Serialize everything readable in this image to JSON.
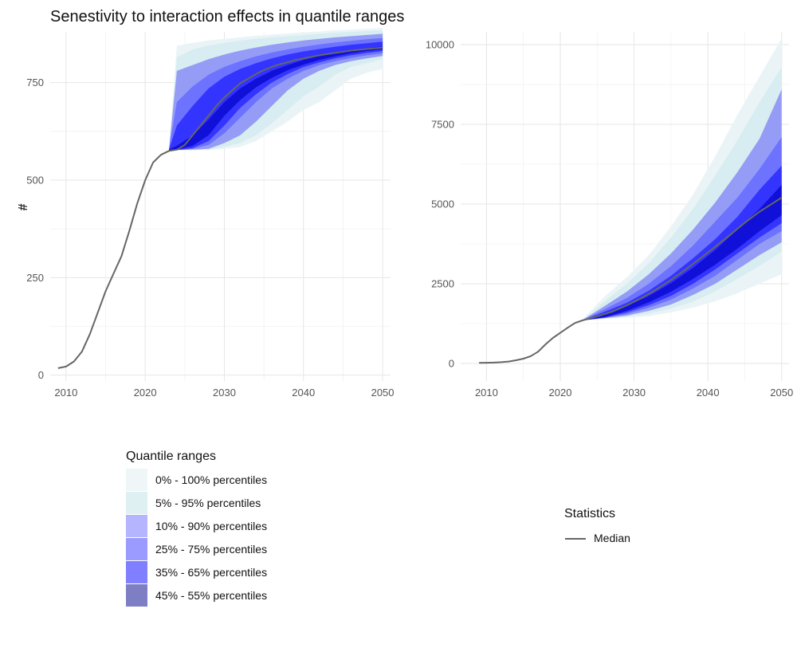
{
  "chart_data": {
    "type": "area",
    "title": "Senestivity to interaction effects in quantile ranges",
    "ylabel": "#",
    "band_labels": [
      "0% - 100% percentiles",
      "5% - 95% percentiles",
      "10% - 90% percentiles",
      "25% - 75% percentiles",
      "35% - 65% percentiles",
      "45% - 55% percentiles"
    ],
    "band_colors": [
      "#eef6f8",
      "#dff0f3",
      "#b4b4ff",
      "#9a9aff",
      "#7f7fff",
      "#7e7ec4"
    ],
    "legend_fill_colors": [
      "#eef6f8",
      "#dff0f3",
      "#b4b4ff",
      "#9a9aff",
      "#7f7fff",
      "#7e7ec4"
    ],
    "plot_band_colors": [
      "#eaf4f7",
      "#d8edf1",
      "#949cf6",
      "#6d72ff",
      "#3434ff",
      "#1010d8"
    ],
    "median_color": "#666666",
    "legend_title": "Quantile ranges",
    "stats_title": "Statistics",
    "stats_label": "Median",
    "panels": [
      {
        "xlim": [
          2008,
          2051
        ],
        "ylim": [
          -15,
          880
        ],
        "xticks": [
          2010,
          2020,
          2030,
          2040,
          2050
        ],
        "yticks": [
          0,
          250,
          500,
          750
        ],
        "xtick_labels": [
          "2010",
          "2020",
          "2030",
          "2040",
          "2050"
        ],
        "ytick_labels": [
          "0",
          "250",
          "500",
          "750"
        ],
        "median": {
          "x": [
            2009,
            2010,
            2011,
            2012,
            2013,
            2014,
            2015,
            2016,
            2017,
            2018,
            2019,
            2020,
            2021,
            2022,
            2023,
            2024,
            2025,
            2026,
            2027,
            2028,
            2029,
            2030,
            2031,
            2032,
            2033,
            2034,
            2035,
            2036,
            2037,
            2038,
            2039,
            2040,
            2041,
            2042,
            2043,
            2044,
            2045,
            2046,
            2047,
            2048,
            2049,
            2050
          ],
          "y": [
            18,
            22,
            35,
            60,
            105,
            160,
            215,
            260,
            305,
            370,
            440,
            500,
            545,
            565,
            575,
            578,
            590,
            615,
            640,
            665,
            690,
            712,
            730,
            748,
            760,
            772,
            782,
            790,
            797,
            802,
            808,
            812,
            816,
            820,
            823,
            826,
            829,
            832,
            834,
            836,
            838,
            840
          ]
        },
        "fan_x": [
          2023,
          2024,
          2026,
          2028,
          2030,
          2032,
          2034,
          2036,
          2038,
          2040,
          2042,
          2044,
          2046,
          2048,
          2050
        ],
        "bands": [
          {
            "lower": [
              575,
              577,
              577,
              577,
              580,
              585,
              600,
              625,
              650,
              680,
              700,
              730,
              760,
              775,
              785
            ],
            "upper": [
              578,
              845,
              852,
              858,
              862,
              866,
              870,
              873,
              876,
              879,
              881,
              884,
              886,
              888,
              890
            ]
          },
          {
            "lower": [
              575,
              577,
              577,
              578,
              585,
              595,
              615,
              645,
              680,
              715,
              740,
              770,
              790,
              800,
              810
            ],
            "upper": [
              578,
              815,
              835,
              845,
              852,
              858,
              862,
              866,
              869,
              872,
              875,
              878,
              880,
              882,
              884
            ]
          },
          {
            "lower": [
              575,
              577,
              578,
              580,
              595,
              615,
              650,
              690,
              730,
              760,
              780,
              795,
              805,
              812,
              818
            ],
            "upper": [
              578,
              780,
              795,
              810,
              822,
              832,
              840,
              847,
              853,
              858,
              862,
              866,
              869,
              872,
              875
            ]
          },
          {
            "lower": [
              575,
              577,
              580,
              590,
              620,
              660,
              700,
              735,
              760,
              780,
              795,
              805,
              813,
              820,
              825
            ],
            "upper": [
              578,
              700,
              740,
              770,
              790,
              805,
              817,
              827,
              835,
              842,
              848,
              853,
              857,
              861,
              864
            ]
          },
          {
            "lower": [
              575,
              577,
              582,
              600,
              640,
              685,
              720,
              750,
              772,
              790,
              802,
              812,
              820,
              826,
              831
            ],
            "upper": [
              578,
              640,
              690,
              735,
              765,
              785,
              800,
              812,
              822,
              830,
              836,
              842,
              847,
              851,
              855
            ]
          },
          {
            "lower": [
              575,
              578,
              588,
              615,
              665,
              705,
              738,
              762,
              782,
              796,
              808,
              817,
              825,
              831,
              836
            ],
            "upper": [
              578,
              588,
              615,
              655,
              700,
              735,
              760,
              780,
              795,
              808,
              818,
              826,
              833,
              838,
              843
            ]
          }
        ]
      },
      {
        "xlim": [
          2006.5,
          2051
        ],
        "ylim": [
          -550,
          10400
        ],
        "xticks": [
          2010,
          2020,
          2030,
          2040,
          2050
        ],
        "yticks": [
          0,
          2500,
          5000,
          7500,
          10000
        ],
        "xtick_labels": [
          "2010",
          "2020",
          "2030",
          "2040",
          "2050"
        ],
        "ytick_labels": [
          "0",
          "2500",
          "5000",
          "7500",
          "10000"
        ],
        "median": {
          "x": [
            2009,
            2010,
            2011,
            2012,
            2013,
            2014,
            2015,
            2016,
            2017,
            2018,
            2019,
            2020,
            2021,
            2022,
            2023,
            2025,
            2027,
            2029,
            2031,
            2033,
            2035,
            2037,
            2039,
            2041,
            2043,
            2045,
            2047,
            2050
          ],
          "y": [
            20,
            22,
            28,
            40,
            60,
            100,
            150,
            230,
            370,
            600,
            800,
            960,
            1120,
            1270,
            1350,
            1480,
            1620,
            1820,
            2050,
            2320,
            2620,
            2950,
            3300,
            3660,
            4030,
            4410,
            4760,
            5200
          ]
        },
        "fan_x": [
          2023,
          2026,
          2029,
          2032,
          2035,
          2038,
          2041,
          2044,
          2047,
          2050
        ],
        "bands": [
          {
            "lower": [
              1350,
              1400,
              1430,
              1480,
              1600,
              1750,
              1950,
              2200,
              2500,
              2800
            ],
            "upper": [
              1380,
              2100,
              2700,
              3400,
              4300,
              5300,
              6500,
              7800,
              9000,
              10200
            ]
          },
          {
            "lower": [
              1350,
              1410,
              1460,
              1560,
              1720,
              1940,
              2260,
              2650,
              3060,
              3500
            ],
            "upper": [
              1370,
              1950,
              2500,
              3150,
              3950,
              4850,
              5900,
              7000,
              8200,
              9300
            ]
          },
          {
            "lower": [
              1350,
              1420,
              1500,
              1650,
              1850,
              2150,
              2500,
              2950,
              3400,
              3800
            ],
            "upper": [
              1360,
              1800,
              2250,
              2800,
              3450,
              4200,
              5050,
              6000,
              7050,
              8600
            ]
          },
          {
            "lower": [
              1350,
              1430,
              1550,
              1750,
              2000,
              2350,
              2750,
              3250,
              3750,
              4150
            ],
            "upper": [
              1355,
              1700,
              2050,
              2500,
              3050,
              3700,
              4450,
              5200,
              6100,
              7100
            ]
          },
          {
            "lower": [
              1350,
              1440,
              1600,
              1830,
              2120,
              2500,
              2950,
              3450,
              3950,
              4400
            ],
            "upper": [
              1352,
              1620,
              1900,
              2280,
              2750,
              3300,
              3900,
              4600,
              5450,
              6200
            ]
          },
          {
            "lower": [
              1350,
              1450,
              1650,
              1920,
              2250,
              2650,
              3100,
              3600,
              4150,
              4650
            ],
            "upper": [
              1351,
              1560,
              1800,
              2120,
              2520,
              3000,
              3560,
              4200,
              4850,
              5600
            ]
          }
        ]
      }
    ]
  }
}
